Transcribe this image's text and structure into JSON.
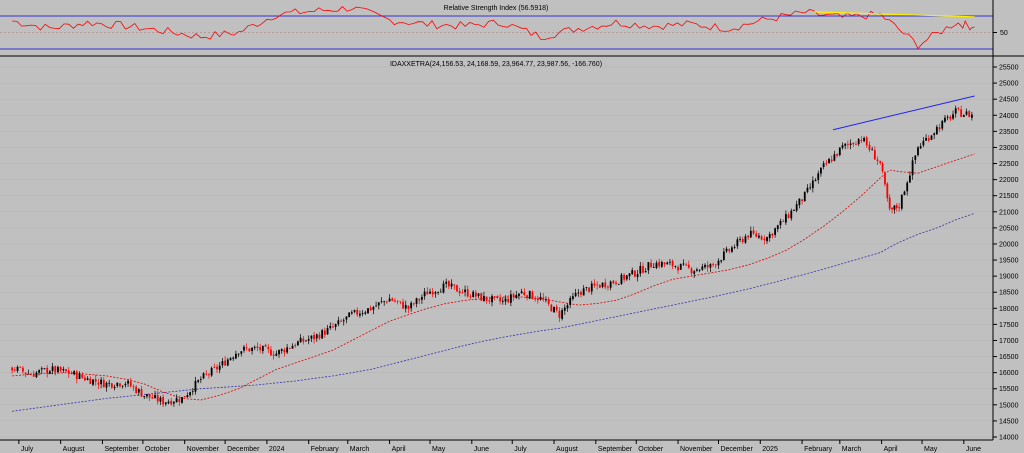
{
  "chart_data": [
    {
      "type": "line",
      "title": "Relative Strength Index (56.5918)",
      "ylim": [
        0,
        100
      ],
      "yticks": [
        50
      ],
      "levels": [
        30,
        70
      ],
      "x_dates": [
        "2023-06-26",
        "2023-07-24",
        "2023-08-21",
        "2023-09-18",
        "2023-10-16",
        "2023-11-13",
        "2023-12-11",
        "2024-01-08",
        "2024-02-05",
        "2024-03-04",
        "2024-04-01",
        "2024-04-29",
        "2024-05-27",
        "2024-06-24",
        "2024-07-22",
        "2024-08-19",
        "2024-09-16",
        "2024-10-14",
        "2024-11-11",
        "2024-12-09",
        "2025-01-06",
        "2025-02-03",
        "2025-03-03",
        "2025-03-31",
        "2025-04-28",
        "2025-05-26",
        "2025-06-09"
      ],
      "series": [
        {
          "values": [
            64,
            55,
            62,
            58,
            52,
            45,
            50,
            72,
            76,
            80,
            65,
            60,
            58,
            62,
            45,
            55,
            62,
            58,
            60,
            55,
            66,
            74,
            68,
            72,
            35,
            62,
            56.6
          ]
        }
      ],
      "trendline": {
        "from": [
          "2025-02-10",
          75
        ],
        "to": [
          "2025-06-09",
          69
        ]
      }
    },
    {
      "type": "candlestick",
      "title": "IDAXXETRA(24,156.53, 24,168.59, 23,964.77, 23,987.56, -166.760)",
      "ylim": [
        14000,
        25500
      ],
      "yticks": [
        14000,
        14500,
        15000,
        15500,
        16000,
        16500,
        17000,
        17500,
        18000,
        18500,
        19000,
        19500,
        20000,
        20500,
        21000,
        21500,
        22000,
        22500,
        23000,
        23500,
        24000,
        24500,
        25000,
        25500
      ],
      "xticks": [
        "July",
        "August",
        "September",
        "October",
        "November",
        "December",
        "2024",
        "February",
        "March",
        "April",
        "May",
        "June",
        "July",
        "August",
        "September",
        "October",
        "November",
        "December",
        "2025",
        "February",
        "March",
        "April",
        "May",
        "June"
      ],
      "x_dates": [
        "2023-06-26",
        "2023-07-10",
        "2023-07-24",
        "2023-08-07",
        "2023-08-21",
        "2023-09-04",
        "2023-09-18",
        "2023-10-02",
        "2023-10-16",
        "2023-10-30",
        "2023-11-13",
        "2023-11-27",
        "2023-12-11",
        "2023-12-25",
        "2024-01-08",
        "2024-01-22",
        "2024-02-05",
        "2024-02-19",
        "2024-03-04",
        "2024-03-18",
        "2024-04-01",
        "2024-04-15",
        "2024-04-29",
        "2024-05-13",
        "2024-05-27",
        "2024-06-10",
        "2024-06-24",
        "2024-07-08",
        "2024-07-22",
        "2024-08-05",
        "2024-08-19",
        "2024-09-02",
        "2024-09-16",
        "2024-09-30",
        "2024-10-14",
        "2024-10-28",
        "2024-11-11",
        "2024-11-25",
        "2024-12-09",
        "2024-12-23",
        "2025-01-06",
        "2025-01-20",
        "2025-02-03",
        "2025-02-17",
        "2025-03-03",
        "2025-03-17",
        "2025-03-31",
        "2025-04-07",
        "2025-04-14",
        "2025-04-28",
        "2025-05-12",
        "2025-05-26",
        "2025-06-09"
      ],
      "series": [
        {
          "name": "close",
          "values": [
            16150,
            15950,
            16100,
            16000,
            15800,
            15650,
            15700,
            15300,
            15100,
            15200,
            15800,
            16200,
            16700,
            16750,
            16600,
            16900,
            17100,
            17400,
            17800,
            18000,
            18300,
            18000,
            18500,
            18700,
            18500,
            18300,
            18200,
            18500,
            18300,
            17800,
            18500,
            18700,
            18850,
            19100,
            19400,
            19350,
            19200,
            19300,
            19800,
            20300,
            20200,
            20800,
            21500,
            22400,
            23000,
            23300,
            22500,
            21000,
            21200,
            23000,
            23600,
            24100,
            23990
          ]
        },
        {
          "name": "sma200",
          "values": [
            14800,
            14880,
            14960,
            15040,
            15120,
            15200,
            15260,
            15320,
            15380,
            15440,
            15500,
            15540,
            15580,
            15620,
            15680,
            15740,
            15820,
            15900,
            16000,
            16100,
            16250,
            16400,
            16550,
            16700,
            16850,
            16980,
            17100,
            17200,
            17300,
            17380,
            17500,
            17620,
            17740,
            17860,
            17980,
            18100,
            18220,
            18340,
            18470,
            18600,
            18750,
            18900,
            19060,
            19220,
            19390,
            19560,
            19730,
            19900,
            20050,
            20300,
            20500,
            20750,
            20950
          ]
        },
        {
          "name": "sma50",
          "values": [
            15900,
            15950,
            15980,
            16000,
            15950,
            15900,
            15800,
            15650,
            15400,
            15200,
            15150,
            15300,
            15500,
            15800,
            16100,
            16300,
            16500,
            16700,
            17000,
            17300,
            17600,
            17800,
            18000,
            18150,
            18250,
            18300,
            18350,
            18350,
            18300,
            18200,
            18100,
            18150,
            18250,
            18450,
            18700,
            18900,
            19000,
            19100,
            19200,
            19350,
            19550,
            19800,
            20150,
            20550,
            21000,
            21500,
            22050,
            22300,
            22250,
            22200,
            22400,
            22600,
            22800
          ]
        }
      ],
      "trendline": {
        "from": [
          "2025-02-24",
          23550
        ],
        "to": [
          "2025-06-09",
          24600
        ]
      }
    }
  ],
  "colors": {
    "background": "#c0c0c0",
    "rsi": "#ff0000",
    "levels": "#3333cc",
    "rsi_trendline": "#ffee00",
    "price_trendline": "#2222ee",
    "sma50": "#dd0000",
    "sma200": "#3333aa",
    "up": "#000000",
    "down": "#ff0000"
  }
}
